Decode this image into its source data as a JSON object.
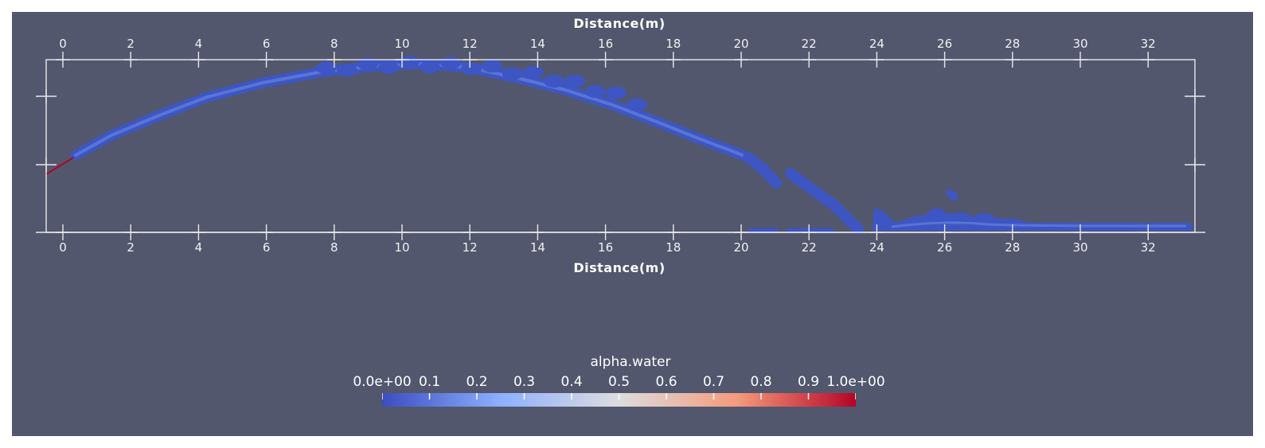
{
  "axes": {
    "top_title": "Distance(m)",
    "bottom_title": "Distance(m)",
    "tick_labels": [
      "0",
      "2",
      "4",
      "6",
      "8",
      "10",
      "12",
      "14",
      "16",
      "18",
      "20",
      "22",
      "24",
      "26",
      "28",
      "30",
      "32"
    ]
  },
  "colorbar": {
    "title": "alpha.water",
    "labels": [
      "0.0e+00",
      "0.1",
      "0.2",
      "0.3",
      "0.4",
      "0.5",
      "0.6",
      "0.7",
      "0.8",
      "0.9",
      "1.0e+00"
    ],
    "colors": [
      "#3b4cc0",
      "#8db0fe",
      "#dddddd",
      "#f49a7b",
      "#b40426"
    ]
  },
  "colors": {
    "background": "#52576e",
    "axes": "#ffffff",
    "water": "#3d56c4",
    "water_highlight": "#6f8ee8",
    "nozzle": "#b40426"
  }
}
